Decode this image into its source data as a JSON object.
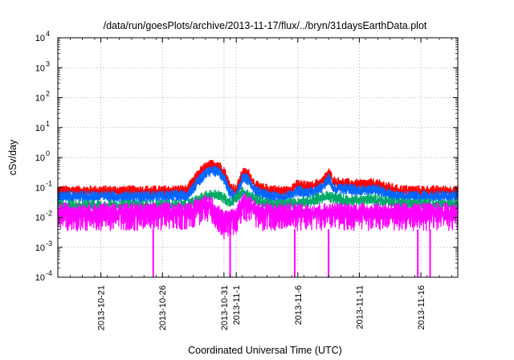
{
  "chart_data": {
    "type": "line",
    "title": "/data/run/goesPlots/archive/2013-11-17/flux/../bryn/31daysEarthData.plot",
    "xlabel": "Coordinated Universal Time (UTC)",
    "ylabel": "cSv/day",
    "yscale": "log",
    "ylim": [
      0.0001,
      10000
    ],
    "xlim": [
      "2013-10-17T12:00",
      "2013-11-19T00:00"
    ],
    "grid": true,
    "legend": "none",
    "y_ticks": [
      {
        "value": 0.0001,
        "base": "10",
        "exp": "-4"
      },
      {
        "value": 0.001,
        "base": "10",
        "exp": "-3"
      },
      {
        "value": 0.01,
        "base": "10",
        "exp": "-2"
      },
      {
        "value": 0.1,
        "base": "10",
        "exp": "-1"
      },
      {
        "value": 1,
        "base": "10",
        "exp": "0"
      },
      {
        "value": 10,
        "base": "10",
        "exp": "1"
      },
      {
        "value": 100,
        "base": "10",
        "exp": "2"
      },
      {
        "value": 1000,
        "base": "10",
        "exp": "3"
      },
      {
        "value": 10000,
        "base": "10",
        "exp": "4"
      }
    ],
    "x_ticks": [
      {
        "date": "2013-10-21T00:00",
        "label": "2013-10-21"
      },
      {
        "date": "2013-10-26T00:00",
        "label": "2013-10-26"
      },
      {
        "date": "2013-10-31T00:00",
        "label": "2013-10-31"
      },
      {
        "date": "2013-11-01T00:00",
        "label": "2013-11-1"
      },
      {
        "date": "2013-11-06T00:00",
        "label": "2013-11-6"
      },
      {
        "date": "2013-11-11T00:00",
        "label": "2013-11-11"
      },
      {
        "date": "2013-11-16T00:00",
        "label": "2013-11-16"
      }
    ],
    "series": [
      {
        "color": "#ff0000",
        "dates": [
          "2013-10-17T12:00",
          "2013-10-20T00:00",
          "2013-10-23T00:00",
          "2013-10-26T00:00",
          "2013-10-28T00:00",
          "2013-10-29T00:00",
          "2013-10-29T12:00",
          "2013-10-30T00:00",
          "2013-10-30T12:00",
          "2013-10-31T00:00",
          "2013-10-31T12:00",
          "2013-11-01T00:00",
          "2013-11-01T12:00",
          "2013-11-02T00:00",
          "2013-11-02T12:00",
          "2013-11-03T00:00",
          "2013-11-04T00:00",
          "2013-11-05T00:00",
          "2013-11-06T00:00",
          "2013-11-07T00:00",
          "2013-11-08T00:00",
          "2013-11-08T12:00",
          "2013-11-09T00:00",
          "2013-11-10T00:00",
          "2013-11-11T00:00",
          "2013-11-12T00:00",
          "2013-11-13T00:00",
          "2013-11-14T00:00",
          "2013-11-16T00:00",
          "2013-11-19T00:00"
        ],
        "values": [
          0.075,
          0.075,
          0.075,
          0.075,
          0.08,
          0.3,
          0.45,
          0.55,
          0.55,
          0.35,
          0.1,
          0.08,
          0.3,
          0.28,
          0.12,
          0.09,
          0.08,
          0.07,
          0.12,
          0.1,
          0.15,
          0.3,
          0.15,
          0.13,
          0.12,
          0.13,
          0.11,
          0.08,
          0.075,
          0.075
        ]
      },
      {
        "color": "#0066ff",
        "dates": [
          "2013-10-17T12:00",
          "2013-10-20T00:00",
          "2013-10-23T00:00",
          "2013-10-26T00:00",
          "2013-10-28T00:00",
          "2013-10-29T00:00",
          "2013-10-29T12:00",
          "2013-10-30T00:00",
          "2013-10-30T12:00",
          "2013-10-31T00:00",
          "2013-10-31T12:00",
          "2013-11-01T00:00",
          "2013-11-01T12:00",
          "2013-11-02T00:00",
          "2013-11-02T12:00",
          "2013-11-03T00:00",
          "2013-11-04T00:00",
          "2013-11-05T00:00",
          "2013-11-06T00:00",
          "2013-11-07T00:00",
          "2013-11-08T00:00",
          "2013-11-08T12:00",
          "2013-11-09T00:00",
          "2013-11-10T00:00",
          "2013-11-11T00:00",
          "2013-11-12T00:00",
          "2013-11-13T00:00",
          "2013-11-14T00:00",
          "2013-11-16T00:00",
          "2013-11-19T00:00"
        ],
        "values": [
          0.05,
          0.05,
          0.05,
          0.05,
          0.055,
          0.17,
          0.28,
          0.35,
          0.35,
          0.2,
          0.065,
          0.05,
          0.2,
          0.18,
          0.08,
          0.06,
          0.05,
          0.045,
          0.08,
          0.065,
          0.1,
          0.2,
          0.09,
          0.09,
          0.08,
          0.09,
          0.07,
          0.05,
          0.05,
          0.05
        ]
      },
      {
        "color": "#00aa66",
        "dates": [
          "2013-10-17T12:00",
          "2013-10-28T00:00",
          "2013-10-29T12:00",
          "2013-10-30T12:00",
          "2013-10-31T12:00",
          "2013-11-01T12:00",
          "2013-11-02T12:00",
          "2013-11-04T00:00",
          "2013-11-06T00:00",
          "2013-11-08T12:00",
          "2013-11-10T00:00",
          "2013-11-12T00:00",
          "2013-11-14T00:00",
          "2013-11-19T00:00"
        ],
        "values": [
          0.025,
          0.025,
          0.05,
          0.06,
          0.03,
          0.07,
          0.04,
          0.025,
          0.03,
          0.05,
          0.035,
          0.04,
          0.03,
          0.025
        ]
      },
      {
        "color": "#ff00ff",
        "dates": [
          "2013-10-17T12:00",
          "2013-10-20T00:00",
          "2013-10-23T00:00",
          "2013-10-25T00:00",
          "2013-10-28T00:00",
          "2013-10-29T00:00",
          "2013-10-29T12:00",
          "2013-10-30T00:00",
          "2013-10-30T12:00",
          "2013-10-31T00:00",
          "2013-10-31T12:00",
          "2013-11-01T00:00",
          "2013-11-01T12:00",
          "2013-11-02T00:00",
          "2013-11-02T12:00",
          "2013-11-03T00:00",
          "2013-11-04T00:00",
          "2013-11-06T00:00",
          "2013-11-08T00:00",
          "2013-11-10T00:00",
          "2013-11-12T00:00",
          "2013-11-14T00:00",
          "2013-11-16T00:00",
          "2013-11-19T00:00"
        ],
        "values": [
          0.015,
          0.015,
          0.015,
          0.015,
          0.016,
          0.022,
          0.03,
          0.025,
          0.015,
          0.008,
          0.01,
          0.012,
          0.035,
          0.028,
          0.02,
          0.015,
          0.015,
          0.015,
          0.015,
          0.015,
          0.015,
          0.015,
          0.015,
          0.015
        ]
      }
    ],
    "magenta_dropouts": [
      "2013-10-25T06:00",
      "2013-10-31T12:00",
      "2013-11-05T18:00",
      "2013-11-08T12:00",
      "2013-11-15T18:00",
      "2013-11-16T18:00"
    ]
  }
}
